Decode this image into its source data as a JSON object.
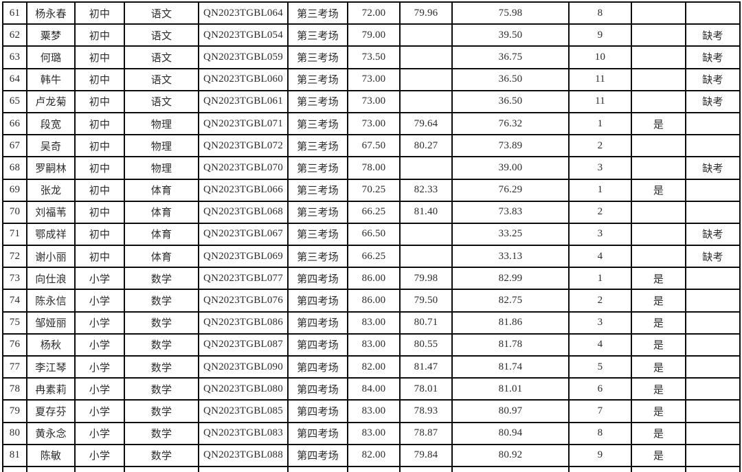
{
  "table": {
    "description_colors": {
      "border": "#0b0b0b",
      "text": "#2b2b2b",
      "background": "#ffffff"
    },
    "rows": [
      [
        "61",
        "杨永春",
        "初中",
        "语文",
        "QN2023TGBL064",
        "第三考场",
        "72.00",
        "79.96",
        "75.98",
        "8",
        "",
        ""
      ],
      [
        "62",
        "粟梦",
        "初中",
        "语文",
        "QN2023TGBL054",
        "第三考场",
        "79.00",
        "",
        "39.50",
        "9",
        "",
        "缺考"
      ],
      [
        "63",
        "何璐",
        "初中",
        "语文",
        "QN2023TGBL059",
        "第三考场",
        "73.50",
        "",
        "36.75",
        "10",
        "",
        "缺考"
      ],
      [
        "64",
        "韩牛",
        "初中",
        "语文",
        "QN2023TGBL060",
        "第三考场",
        "73.00",
        "",
        "36.50",
        "11",
        "",
        "缺考"
      ],
      [
        "65",
        "卢龙菊",
        "初中",
        "语文",
        "QN2023TGBL061",
        "第三考场",
        "73.00",
        "",
        "36.50",
        "11",
        "",
        "缺考"
      ],
      [
        "66",
        "段宽",
        "初中",
        "物理",
        "QN2023TGBL071",
        "第三考场",
        "73.00",
        "79.64",
        "76.32",
        "1",
        "是",
        ""
      ],
      [
        "67",
        "吴奇",
        "初中",
        "物理",
        "QN2023TGBL072",
        "第三考场",
        "67.50",
        "80.27",
        "73.89",
        "2",
        "",
        ""
      ],
      [
        "68",
        "罗嗣林",
        "初中",
        "物理",
        "QN2023TGBL070",
        "第三考场",
        "78.00",
        "",
        "39.00",
        "3",
        "",
        "缺考"
      ],
      [
        "69",
        "张龙",
        "初中",
        "体育",
        "QN2023TGBL066",
        "第三考场",
        "70.25",
        "82.33",
        "76.29",
        "1",
        "是",
        ""
      ],
      [
        "70",
        "刘福苇",
        "初中",
        "体育",
        "QN2023TGBL068",
        "第三考场",
        "66.25",
        "81.40",
        "73.83",
        "2",
        "",
        ""
      ],
      [
        "71",
        "鄂成祥",
        "初中",
        "体育",
        "QN2023TGBL067",
        "第三考场",
        "66.50",
        "",
        "33.25",
        "3",
        "",
        "缺考"
      ],
      [
        "72",
        "谢小丽",
        "初中",
        "体育",
        "QN2023TGBL069",
        "第三考场",
        "66.25",
        "",
        "33.13",
        "4",
        "",
        "缺考"
      ],
      [
        "73",
        "向仕浪",
        "小学",
        "数学",
        "QN2023TGBL077",
        "第四考场",
        "86.00",
        "79.98",
        "82.99",
        "1",
        "是",
        ""
      ],
      [
        "74",
        "陈永信",
        "小学",
        "数学",
        "QN2023TGBL076",
        "第四考场",
        "86.00",
        "79.50",
        "82.75",
        "2",
        "是",
        ""
      ],
      [
        "75",
        "邹娅丽",
        "小学",
        "数学",
        "QN2023TGBL086",
        "第四考场",
        "83.00",
        "80.71",
        "81.86",
        "3",
        "是",
        ""
      ],
      [
        "76",
        "杨秋",
        "小学",
        "数学",
        "QN2023TGBL087",
        "第四考场",
        "83.00",
        "80.55",
        "81.78",
        "4",
        "是",
        ""
      ],
      [
        "77",
        "李江琴",
        "小学",
        "数学",
        "QN2023TGBL090",
        "第四考场",
        "82.00",
        "81.47",
        "81.74",
        "5",
        "是",
        ""
      ],
      [
        "78",
        "冉素莉",
        "小学",
        "数学",
        "QN2023TGBL080",
        "第四考场",
        "84.00",
        "78.01",
        "81.01",
        "6",
        "是",
        ""
      ],
      [
        "79",
        "夏存芬",
        "小学",
        "数学",
        "QN2023TGBL085",
        "第四考场",
        "83.00",
        "78.93",
        "80.97",
        "7",
        "是",
        ""
      ],
      [
        "80",
        "黄永念",
        "小学",
        "数学",
        "QN2023TGBL083",
        "第四考场",
        "83.00",
        "78.87",
        "80.94",
        "8",
        "是",
        ""
      ],
      [
        "81",
        "陈敏",
        "小学",
        "数学",
        "QN2023TGBL088",
        "第四考场",
        "82.00",
        "79.84",
        "80.92",
        "9",
        "是",
        ""
      ]
    ]
  }
}
